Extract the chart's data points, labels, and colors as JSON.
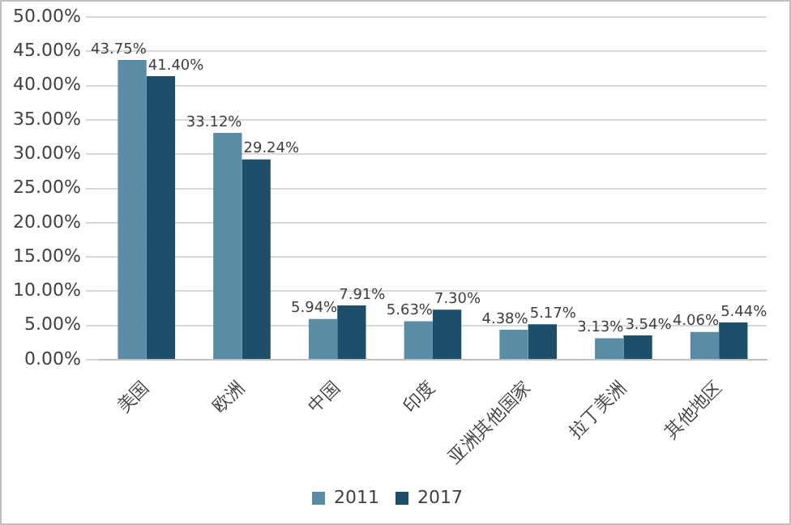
{
  "chart_data": {
    "type": "bar",
    "categories": [
      "美国",
      "欧洲",
      "中国",
      "印度",
      "亚洲其他国家",
      "拉丁美洲",
      "其他地区"
    ],
    "series": [
      {
        "name": "2011",
        "color": "#5a8ca6",
        "values": [
          43.75,
          33.12,
          5.94,
          5.63,
          4.38,
          3.13,
          4.06
        ],
        "value_labels": [
          "43.75%",
          "33.12%",
          "5.94%",
          "5.63%",
          "4.38%",
          "3.13%",
          "4.06%"
        ]
      },
      {
        "name": "2017",
        "color": "#1d4f6b",
        "values": [
          41.4,
          29.24,
          7.91,
          7.3,
          5.17,
          3.54,
          5.44
        ],
        "value_labels": [
          "41.40%",
          "29.24%",
          "7.91%",
          "7.30%",
          "5.17%",
          "3.54%",
          "5.44%"
        ]
      }
    ],
    "ylim": [
      0,
      50
    ],
    "yticks": [
      {
        "value": 0,
        "label": "0.00%"
      },
      {
        "value": 5,
        "label": "5.00%"
      },
      {
        "value": 10,
        "label": "10.00%"
      },
      {
        "value": 15,
        "label": "15.00%"
      },
      {
        "value": 20,
        "label": "20.00%"
      },
      {
        "value": 25,
        "label": "25.00%"
      },
      {
        "value": 30,
        "label": "30.00%"
      },
      {
        "value": 35,
        "label": "35.00%"
      },
      {
        "value": 40,
        "label": "40.00%"
      },
      {
        "value": 45,
        "label": "45.00%"
      },
      {
        "value": 50,
        "label": "50.00%"
      }
    ],
    "grid": "y",
    "legend": "bottom"
  }
}
